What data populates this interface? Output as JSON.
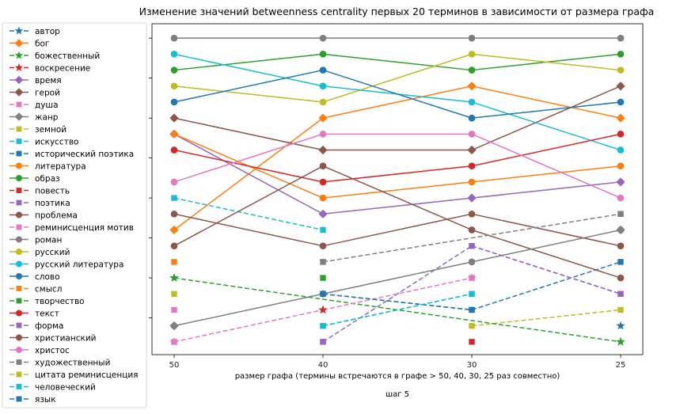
{
  "chart_data": {
    "type": "line",
    "title": "Изменение значений betweenness centrality первых 20 терминов в зависимости от размера графа",
    "xlabel": "размер графа (термины встречаются в графе > 50, 40, 30, 25 раз совместно)",
    "sublabel": "шаг 5",
    "ylabel": "",
    "categories": [
      "50",
      "40",
      "30",
      "25"
    ],
    "ylim": [
      0.2,
      20.9
    ],
    "yticks": [
      2.5,
      5.0,
      7.5,
      10.0,
      12.5,
      15.0,
      17.5,
      20.0
    ],
    "ytick_labels": [
      "2.5",
      "5.0",
      "7.5",
      "10.0",
      "12.5",
      "15.0",
      "17.5",
      "20.0"
    ],
    "grid": false,
    "legend_position": "outside-left",
    "series": [
      {
        "name": "автор",
        "color": "#1f77b4",
        "marker": "star",
        "dash": true,
        "values": [
          null,
          null,
          null,
          2
        ]
      },
      {
        "name": "бог",
        "color": "#ff7f0e",
        "marker": "diamond",
        "dash": false,
        "values": [
          8,
          15,
          17,
          15
        ]
      },
      {
        "name": "божественный",
        "color": "#2ca02c",
        "marker": "star",
        "dash": true,
        "values": [
          5,
          null,
          null,
          1
        ]
      },
      {
        "name": "воскресение",
        "color": "#d62728",
        "marker": "star",
        "dash": true,
        "values": [
          null,
          null,
          null,
          null
        ]
      },
      {
        "name": "время",
        "color": "#9467bd",
        "marker": "diamond",
        "dash": false,
        "values": [
          14,
          9,
          10,
          11
        ]
      },
      {
        "name": "герой",
        "color": "#8c564b",
        "marker": "diamond",
        "dash": false,
        "values": [
          15,
          13,
          13,
          17
        ]
      },
      {
        "name": "душа",
        "color": "#e377c2",
        "marker": "square",
        "dash": true,
        "values": [
          3,
          null,
          null,
          null
        ]
      },
      {
        "name": "жанр",
        "color": "#7f7f7f",
        "marker": "diamond",
        "dash": false,
        "values": [
          2,
          null,
          null,
          8
        ]
      },
      {
        "name": "земной",
        "color": "#bcbd22",
        "marker": "square",
        "dash": true,
        "values": [
          4,
          null,
          2,
          3
        ]
      },
      {
        "name": "искусство",
        "color": "#17becf",
        "marker": "square",
        "dash": true,
        "values": [
          10,
          8,
          null,
          null
        ]
      },
      {
        "name": "исторический поэтика",
        "color": "#1f77b4",
        "marker": "square",
        "dash": true,
        "values": [
          null,
          4,
          3,
          6
        ]
      },
      {
        "name": "литература",
        "color": "#ff7f0e",
        "marker": "circle",
        "dash": false,
        "values": [
          14,
          10,
          11,
          12
        ]
      },
      {
        "name": "образ",
        "color": "#2ca02c",
        "marker": "circle",
        "dash": false,
        "values": [
          18,
          19,
          18,
          19
        ]
      },
      {
        "name": "повесть",
        "color": "#d62728",
        "marker": "square",
        "dash": true,
        "values": [
          null,
          null,
          1,
          null
        ]
      },
      {
        "name": "поэтика",
        "color": "#9467bd",
        "marker": "square",
        "dash": true,
        "values": [
          null,
          1,
          7,
          4
        ]
      },
      {
        "name": "проблема",
        "color": "#8c564b",
        "marker": "circle",
        "dash": false,
        "values": [
          9,
          7,
          9,
          7
        ]
      },
      {
        "name": "реминисценция мотив",
        "color": "#e377c2",
        "marker": "square",
        "dash": true,
        "values": [
          1,
          null,
          5,
          null
        ]
      },
      {
        "name": "роман",
        "color": "#7f7f7f",
        "marker": "circle",
        "dash": false,
        "values": [
          20,
          20,
          20,
          20
        ]
      },
      {
        "name": "русский",
        "color": "#bcbd22",
        "marker": "circle",
        "dash": false,
        "values": [
          17,
          16,
          19,
          18
        ]
      },
      {
        "name": "русский литература",
        "color": "#17becf",
        "marker": "circle",
        "dash": false,
        "values": [
          19,
          17,
          16,
          13
        ]
      },
      {
        "name": "слово",
        "color": "#1f77b4",
        "marker": "circle",
        "dash": false,
        "values": [
          16,
          18,
          15,
          16
        ]
      },
      {
        "name": "смысл",
        "color": "#ff7f0e",
        "marker": "square",
        "dash": true,
        "values": [
          6,
          null,
          null,
          null
        ]
      },
      {
        "name": "творчество",
        "color": "#2ca02c",
        "marker": "square",
        "dash": true,
        "values": [
          null,
          5,
          null,
          null
        ]
      },
      {
        "name": "текст",
        "color": "#d62728",
        "marker": "circle",
        "dash": false,
        "values": [
          13,
          11,
          12,
          14
        ]
      },
      {
        "name": "форма",
        "color": "#9467bd",
        "marker": "square",
        "dash": true,
        "values": [
          null,
          null,
          null,
          null
        ]
      },
      {
        "name": "христианский",
        "color": "#8c564b",
        "marker": "circle",
        "dash": false,
        "values": [
          7,
          12,
          8,
          5
        ]
      },
      {
        "name": "христос",
        "color": "#e377c2",
        "marker": "circle",
        "dash": false,
        "values": [
          11,
          14,
          14,
          10
        ]
      },
      {
        "name": "художественный",
        "color": "#7f7f7f",
        "marker": "square",
        "dash": true,
        "values": [
          null,
          6,
          null,
          9
        ]
      },
      {
        "name": "цитата реминисценция",
        "color": "#bcbd22",
        "marker": "square",
        "dash": true,
        "values": [
          null,
          null,
          null,
          null
        ]
      },
      {
        "name": "человеческий",
        "color": "#17becf",
        "marker": "square",
        "dash": true,
        "values": [
          null,
          2,
          4,
          null
        ]
      },
      {
        "name": "язык",
        "color": "#1f77b4",
        "marker": "square",
        "dash": true,
        "values": [
          null,
          null,
          null,
          null
        ]
      }
    ],
    "extra_segments": [
      {
        "color": "#7f7f7f",
        "marker": "circle",
        "dash": false,
        "points": [
          [
            0,
            2
          ],
          [
            1,
            4
          ],
          [
            2,
            6
          ],
          [
            3,
            8
          ]
        ]
      },
      {
        "color": "#2ca02c",
        "marker": "star",
        "dash": true,
        "points": [
          [
            0,
            5
          ],
          [
            3,
            1
          ]
        ]
      },
      {
        "color": "#e377c2",
        "marker": "star",
        "dash": true,
        "points": [
          [
            0,
            1
          ],
          [
            1,
            3
          ],
          [
            2,
            5
          ]
        ]
      },
      {
        "color": "#d62728",
        "marker": "star",
        "dash": true,
        "points": [
          [
            1,
            3
          ]
        ]
      },
      {
        "color": "#1f77b4",
        "marker": "square",
        "dash": true,
        "points": [
          [
            1,
            4
          ],
          [
            2,
            3
          ]
        ]
      },
      {
        "color": "#9467bd",
        "marker": "square",
        "dash": true,
        "points": [
          [
            1,
            1
          ]
        ]
      },
      {
        "color": "#9467bd",
        "marker": "square",
        "dash": true,
        "points": [
          [
            2,
            7
          ],
          [
            3,
            4
          ]
        ]
      },
      {
        "color": "#7f7f7f",
        "marker": "square",
        "dash": true,
        "points": [
          [
            1,
            6
          ],
          [
            3,
            9
          ]
        ]
      },
      {
        "color": "#17becf",
        "marker": "square",
        "dash": true,
        "points": [
          [
            1,
            2
          ],
          [
            2,
            4
          ]
        ]
      }
    ]
  }
}
